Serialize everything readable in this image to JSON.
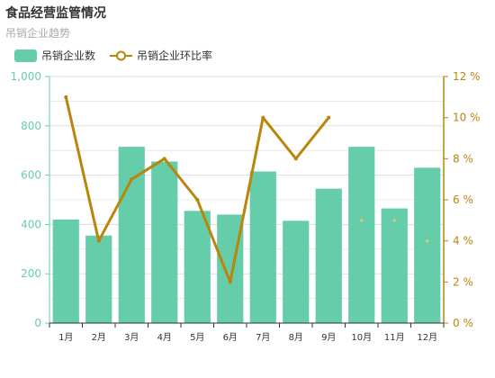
{
  "header": {
    "title": "食品经营监管情况",
    "subtitle": "吊销企业趋势"
  },
  "colors": {
    "bar": "#66cdaa",
    "line": "#b8860b",
    "grid": "#dddddd",
    "axis_line_left": "#66cdaa",
    "axis_line_right": "#b8860b"
  },
  "chart_data": {
    "type": "bar",
    "categories": [
      "1月",
      "2月",
      "3月",
      "4月",
      "5月",
      "6月",
      "7月",
      "8月",
      "9月",
      "10月",
      "11月",
      "12月"
    ],
    "series": [
      {
        "name": "吊销企业数",
        "type": "bar",
        "axis": "left",
        "values": [
          420,
          355,
          715,
          655,
          455,
          440,
          615,
          415,
          545,
          715,
          465,
          630
        ]
      },
      {
        "name": "吊销企业环比率",
        "type": "line",
        "axis": "right",
        "unit": "%",
        "values": [
          11,
          4,
          7,
          8,
          6,
          2,
          10,
          8,
          10,
          null,
          null,
          null
        ],
        "faint_points": [
          {
            "x": "10月",
            "y": 5
          },
          {
            "x": "11月",
            "y": 5
          },
          {
            "x": "12月",
            "y": 4
          }
        ]
      }
    ],
    "y_left": {
      "min": 0,
      "max": 1000,
      "step": 200,
      "ticks": [
        "0",
        "200",
        "400",
        "600",
        "800",
        "1,000"
      ]
    },
    "y_right": {
      "min": 0,
      "max": 12,
      "step": 2,
      "ticks": [
        "0 %",
        "2 %",
        "4 %",
        "6 %",
        "8 %",
        "10 %",
        "12 %"
      ]
    },
    "grid": true,
    "legend_position": "top-left"
  }
}
